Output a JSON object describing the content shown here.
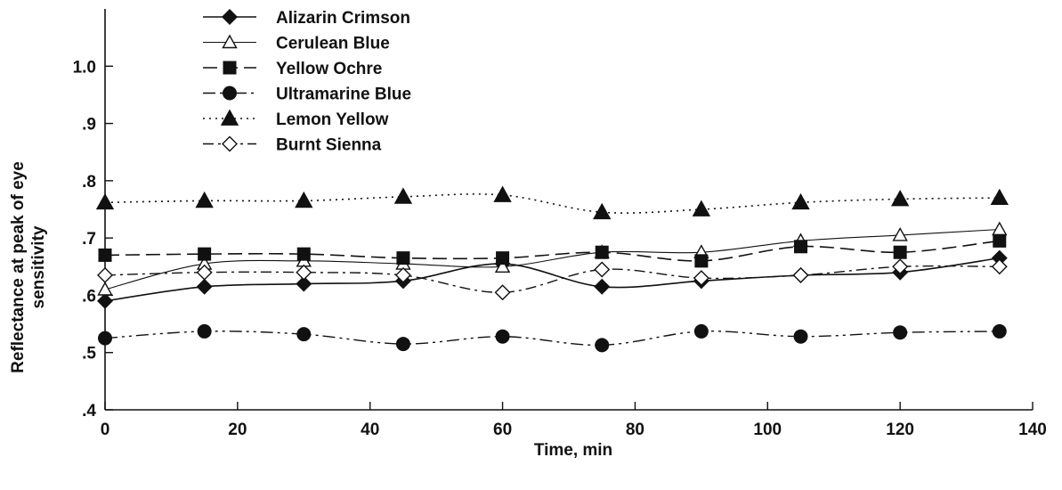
{
  "chart_data": {
    "type": "line",
    "title": "",
    "xlabel": "Time, min",
    "ylabel_line1": "Reflectance at peak of eye",
    "ylabel_line2": "sensitivity",
    "xlim": [
      0,
      140
    ],
    "ylim": [
      0.4,
      1.1
    ],
    "x_ticks": [
      {
        "value": 0,
        "label": "0"
      },
      {
        "value": 20,
        "label": "20"
      },
      {
        "value": 40,
        "label": "40"
      },
      {
        "value": 60,
        "label": "60"
      },
      {
        "value": 80,
        "label": "80"
      },
      {
        "value": 100,
        "label": "100"
      },
      {
        "value": 120,
        "label": "120"
      },
      {
        "value": 140,
        "label": "140"
      }
    ],
    "y_ticks": [
      {
        "value": 0.4,
        "label": ".4"
      },
      {
        "value": 0.5,
        "label": ".5"
      },
      {
        "value": 0.6,
        "label": ".6"
      },
      {
        "value": 0.7,
        "label": ".7"
      },
      {
        "value": 0.8,
        "label": ".8"
      },
      {
        "value": 0.9,
        "label": ".9"
      },
      {
        "value": 1.0,
        "label": "1.0"
      }
    ],
    "grid": false,
    "legend_position": "top-left",
    "x": [
      0,
      15,
      30,
      45,
      60,
      75,
      90,
      105,
      120,
      135
    ],
    "series": [
      {
        "name": "Alizarin Crimson",
        "marker": "diamond-filled",
        "dash": "solid",
        "stroke_width": 1.6,
        "values": [
          0.59,
          0.615,
          0.62,
          0.625,
          0.655,
          0.615,
          0.625,
          0.635,
          0.64,
          0.665
        ]
      },
      {
        "name": "Cerulean Blue",
        "marker": "triangle-open",
        "dash": "solid",
        "stroke_width": 1.1,
        "values": [
          0.61,
          0.655,
          0.66,
          0.655,
          0.65,
          0.675,
          0.675,
          0.695,
          0.705,
          0.715
        ]
      },
      {
        "name": "Yellow Ochre",
        "marker": "square-filled",
        "dash": "16,7",
        "stroke_width": 1.6,
        "values": [
          0.67,
          0.672,
          0.672,
          0.665,
          0.665,
          0.675,
          0.66,
          0.685,
          0.675,
          0.695
        ]
      },
      {
        "name": "Ultramarine Blue",
        "marker": "circle-filled",
        "dash": "14,5,3,5,3,5",
        "stroke_width": 1.4,
        "values": [
          0.525,
          0.537,
          0.532,
          0.515,
          0.528,
          0.513,
          0.537,
          0.528,
          0.535,
          0.537
        ]
      },
      {
        "name": "Lemon Yellow",
        "marker": "triangle-filled",
        "dash": "2,5",
        "stroke_width": 1.6,
        "values": [
          0.762,
          0.765,
          0.765,
          0.772,
          0.775,
          0.745,
          0.75,
          0.762,
          0.768,
          0.77
        ]
      },
      {
        "name": "Burnt Sienna",
        "marker": "diamond-open",
        "dash": "12,5,3,5",
        "stroke_width": 1.4,
        "values": [
          0.635,
          0.64,
          0.64,
          0.635,
          0.605,
          0.645,
          0.63,
          0.635,
          0.65,
          0.65
        ]
      }
    ]
  }
}
